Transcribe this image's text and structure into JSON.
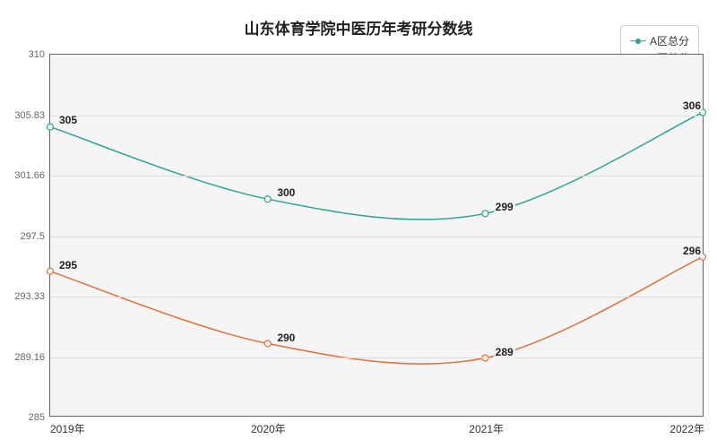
{
  "chart": {
    "type": "line",
    "title": "山东体育学院中医历年考研分数线",
    "title_fontsize": 17,
    "background_color": "#ffffff",
    "plot_background_color": "#f5f5f5",
    "border_color": "#666666",
    "grid_color": "#dddddd",
    "x_categories": [
      "2019年",
      "2020年",
      "2021年",
      "2022年"
    ],
    "ylim": [
      285,
      310
    ],
    "y_ticks": [
      285,
      289.16,
      293.33,
      297.5,
      301.66,
      305.83,
      310
    ],
    "y_tick_labels": [
      "285",
      "289.16",
      "293.33",
      "297.5",
      "301.66",
      "305.83",
      "310"
    ],
    "series": [
      {
        "name": "A区总分",
        "color": "#2ca58d",
        "line_width": 1.5,
        "marker_size": 5,
        "values": [
          305,
          300,
          299,
          306
        ],
        "labels": [
          "305",
          "300",
          "299",
          "306"
        ]
      },
      {
        "name": "B区总分",
        "color": "#e2703a",
        "line_width": 1.5,
        "marker_size": 5,
        "values": [
          295,
          290,
          289,
          296
        ],
        "labels": [
          "295",
          "290",
          "289",
          "296"
        ]
      }
    ],
    "legend": {
      "position": "top-right"
    },
    "label_fontsize": 12,
    "tick_fontsize": 11
  }
}
